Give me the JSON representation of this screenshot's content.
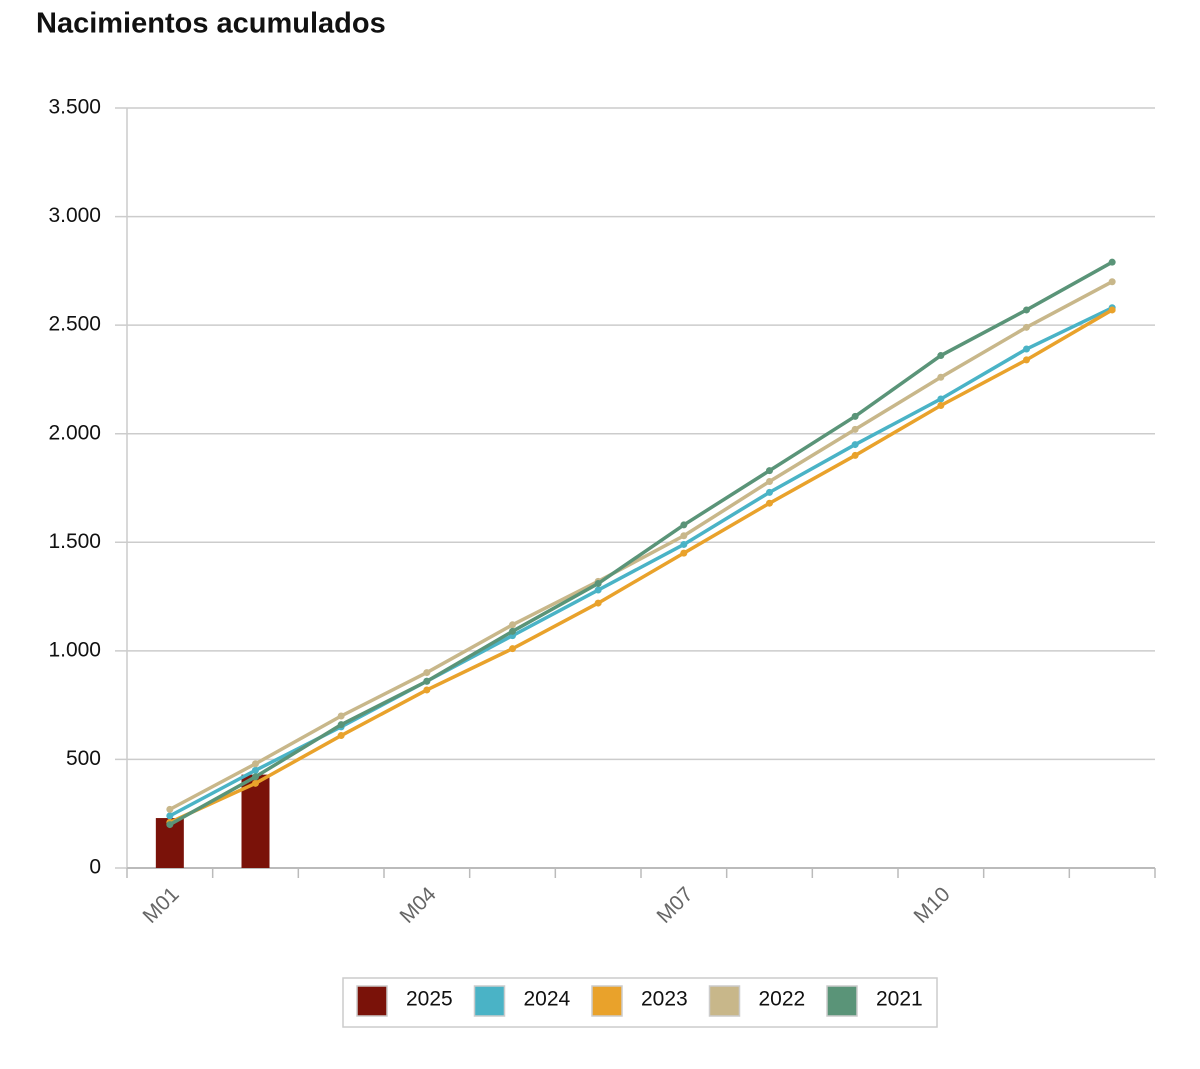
{
  "chart_data": {
    "type": "line",
    "title": "Nacimientos acumulados",
    "categories": [
      "M01",
      null,
      null,
      "M04",
      null,
      null,
      "M07",
      null,
      null,
      "M10",
      null,
      null
    ],
    "series": [
      {
        "name": "2025",
        "type": "bar",
        "color": "#7a1209",
        "values": [
          230,
          430,
          null,
          null,
          null,
          null,
          null,
          null,
          null,
          null,
          null,
          null
        ]
      },
      {
        "name": "2024",
        "color": "#4ab3c6",
        "values": [
          240,
          450,
          650,
          860,
          1070,
          1280,
          1490,
          1730,
          1950,
          2160,
          2390,
          2580
        ]
      },
      {
        "name": "2023",
        "color": "#e9a22b",
        "values": [
          210,
          390,
          610,
          820,
          1010,
          1220,
          1450,
          1680,
          1900,
          2130,
          2340,
          2570
        ]
      },
      {
        "name": "2022",
        "color": "#c8b78a",
        "values": [
          270,
          480,
          700,
          900,
          1120,
          1320,
          1530,
          1780,
          2020,
          2260,
          2490,
          2700
        ]
      },
      {
        "name": "2021",
        "color": "#5a9478",
        "values": [
          200,
          420,
          660,
          860,
          1090,
          1310,
          1580,
          1830,
          2080,
          2360,
          2570,
          2790
        ]
      }
    ],
    "ylim": [
      0,
      3500
    ],
    "yticks": [
      0,
      500,
      {
        "value": 1000,
        "label": "1.000"
      },
      {
        "value": 1500,
        "label": "1.500"
      },
      {
        "value": 2000,
        "label": "2.000"
      },
      {
        "value": 2500,
        "label": "2.500"
      },
      {
        "value": 3000,
        "label": "3.000"
      },
      {
        "value": 3500,
        "label": "3.500"
      }
    ],
    "grid": true,
    "legend": "bottom"
  }
}
